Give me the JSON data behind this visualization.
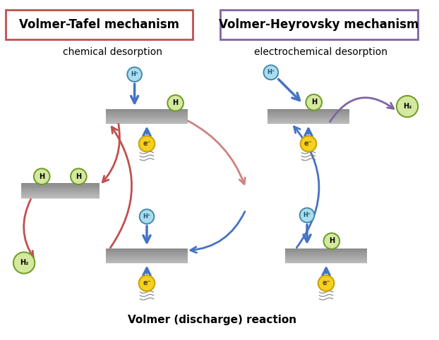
{
  "title_left": "Volmer-Tafel mechanism",
  "title_right": "Volmer-Heyrovsky mechanism",
  "subtitle_left": "chemical desorption",
  "subtitle_right": "electrochemical desorption",
  "bottom_text": "Volmer (discharge) reaction",
  "title_left_box_color": "#c0504d",
  "title_right_box_color": "#8064a2",
  "bg_color": "#ffffff",
  "h_atom_color": "#d4e8a0",
  "h_atom_border": "#6a9b20",
  "hplus_color": "#aaddee",
  "hplus_border": "#4488aa",
  "eminus_color": "#f5d020",
  "eminus_border": "#c8a000",
  "arrow_blue": "#4472c4",
  "arrow_red": "#c0504d",
  "arrow_purple": "#8064a2",
  "figsize": [
    6.22,
    4.83
  ],
  "dpi": 100
}
